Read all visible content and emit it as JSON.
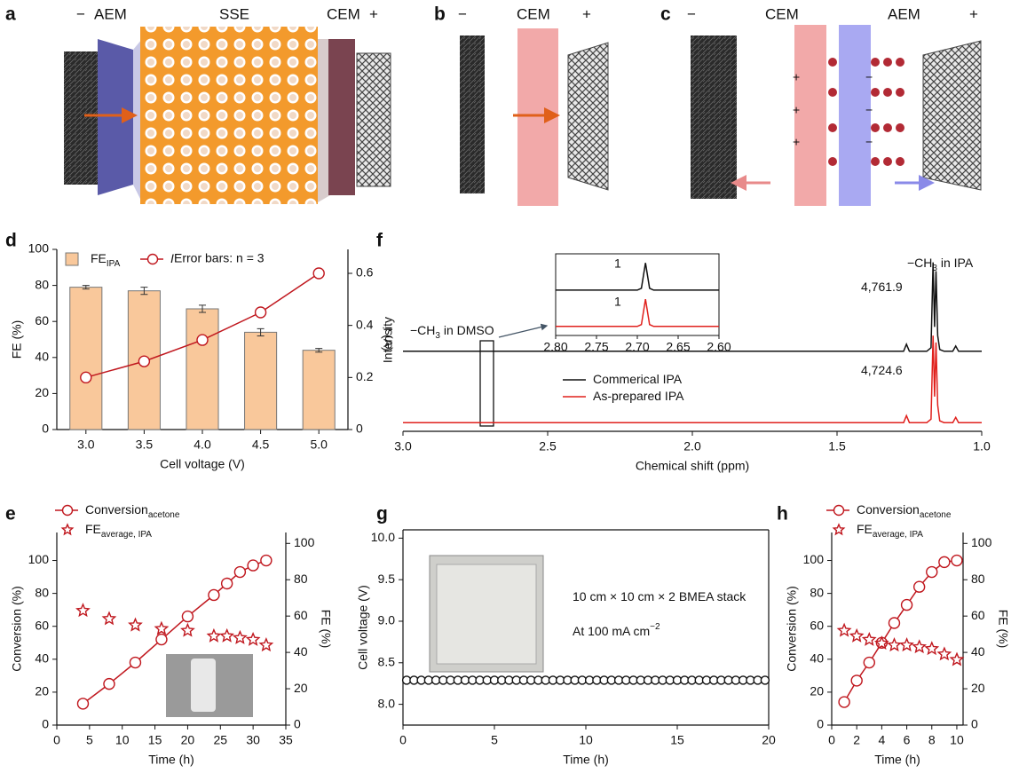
{
  "illustrations": {
    "a": {
      "letter": "a",
      "labels": [
        "−",
        "AEM",
        "SSE",
        "CEM",
        "+"
      ]
    },
    "b": {
      "letter": "b",
      "labels": [
        "−",
        "CEM",
        "+"
      ]
    },
    "c": {
      "letter": "c",
      "labels": [
        "−",
        "CEM",
        "AEM",
        "+"
      ],
      "charges": [
        "+",
        "+",
        "+",
        "−",
        "−",
        "−"
      ]
    }
  },
  "chart_data": [
    {
      "type": "bar",
      "panel": "d",
      "categories": [
        "3.0",
        "3.5",
        "4.0",
        "4.5",
        "5.0"
      ],
      "series": [
        {
          "name": "FE",
          "name_sub": "IPA",
          "color": "#f9c89b",
          "values": [
            79,
            77,
            67,
            54,
            44
          ],
          "errors": [
            1,
            2,
            2,
            2,
            1
          ]
        },
        {
          "name": "I",
          "axis": "y2",
          "color": "#c0171e",
          "marker": "circle",
          "values": [
            0.2,
            0.262,
            0.344,
            0.45,
            0.6
          ]
        }
      ],
      "legend_note": "Error bars: n = 3",
      "xlabel": "Cell voltage (V)",
      "ylabel": "FE (%)",
      "y2label": "I (A)",
      "ylim": [
        0,
        100
      ],
      "yticks": [
        0,
        20,
        40,
        60,
        80,
        100
      ],
      "y2lim": [
        0,
        0.692
      ],
      "y2ticks": [
        0,
        0.2,
        0.4,
        0.6
      ]
    },
    {
      "type": "line",
      "panel": "f",
      "x": [
        3.0,
        1.27,
        1.26,
        1.25,
        1.19,
        1.175,
        1.168,
        1.163,
        1.158,
        1.152,
        1.145,
        1.13,
        1.1,
        1.09,
        1.08,
        1.0
      ],
      "series": [
        {
          "name": "As-prepared IPA",
          "color": "#e0201c",
          "values": [
            0,
            0,
            0.4,
            0,
            0,
            0.2,
            5.0,
            1.5,
            4.6,
            1.0,
            0.1,
            0,
            0,
            0.3,
            0,
            0
          ]
        },
        {
          "name": "Commerical IPA",
          "color": "#111111",
          "values": [
            4.1,
            4.1,
            4.5,
            4.1,
            4.1,
            4.3,
            9.2,
            5.5,
            8.7,
            5.0,
            4.2,
            4.1,
            4.1,
            4.4,
            4.1,
            4.1
          ]
        }
      ],
      "annotations": [
        {
          "text": "−CH",
          "sub": "3",
          "tail": " in IPA"
        },
        {
          "text": "4,761.9"
        },
        {
          "text": "4,724.6"
        },
        {
          "text": "−CH",
          "sub": "3",
          "tail": " in DMSO"
        }
      ],
      "xlabel": "Chemical shift (ppm)",
      "ylabel": "Intensity",
      "xlim": [
        3.0,
        1.0
      ],
      "xticks": [
        {
          "value": 3.0,
          "label": "3.0"
        },
        2.5,
        {
          "value": 2.0,
          "label": "2.0"
        },
        1.5,
        {
          "value": 1.0,
          "label": "1.0"
        }
      ],
      "ylim": [
        -0.5,
        10
      ],
      "inset": {
        "x": [
          2.8,
          2.7,
          2.695,
          2.69,
          2.685,
          2.68,
          2.6
        ],
        "series": [
          {
            "color": "#111111",
            "values": [
              4,
              4,
              4.2,
              7,
              4.2,
              4,
              4
            ]
          },
          {
            "color": "#e0201c",
            "values": [
              0,
              0,
              0.2,
              3,
              0.2,
              0,
              0
            ]
          }
        ],
        "labels": [
          "1",
          "1"
        ],
        "xlim": [
          2.8,
          2.6
        ],
        "xticks": [
          {
            "value": 2.8,
            "label": "2.80"
          },
          2.75,
          {
            "value": 2.7,
            "label": "2.70"
          },
          2.65,
          {
            "value": 2.6,
            "label": "2.60"
          }
        ],
        "ylim": [
          -1,
          8
        ]
      }
    },
    {
      "type": "line",
      "panel": "e",
      "x": [
        4,
        8,
        12,
        16,
        20,
        24,
        26,
        28,
        30,
        32
      ],
      "series": [
        {
          "name": "Conversion",
          "name_sub": "acetone",
          "color": "#c0171e",
          "marker": "circle",
          "connected": true,
          "values": [
            13,
            25,
            38,
            52,
            66,
            79,
            86,
            93,
            97,
            100
          ]
        },
        {
          "name": "FE",
          "name_sub": "average, IPA",
          "color": "#c0171e",
          "marker": "star",
          "connected": false,
          "axis": "y2",
          "values": [
            63,
            58.5,
            55,
            53,
            52,
            49,
            49,
            48,
            47,
            44
          ]
        }
      ],
      "xlabel": "Time (h)",
      "ylabel": "Conversion (%)",
      "y2label": "FE (%)",
      "xlim": [
        0,
        35
      ],
      "xticks": [
        0,
        5,
        10,
        15,
        20,
        25,
        30,
        35
      ],
      "ylim": [
        0,
        117
      ],
      "yticks": [
        0,
        20,
        40,
        60,
        80,
        100
      ],
      "y2lim": [
        0,
        106
      ],
      "y2ticks": [
        0,
        20,
        40,
        60,
        80,
        100
      ]
    },
    {
      "type": "line",
      "panel": "g",
      "x": [
        0.2,
        0.6,
        1.0,
        1.4,
        1.8,
        2.2,
        2.6,
        3.0,
        3.4,
        3.8,
        4.2,
        4.6,
        5.0,
        5.4,
        5.8,
        6.2,
        6.6,
        7.0,
        7.4,
        7.8,
        8.2,
        8.6,
        9.0,
        9.4,
        9.8,
        10.2,
        10.6,
        11.0,
        11.4,
        11.8,
        12.2,
        12.6,
        13.0,
        13.4,
        13.8,
        14.2,
        14.6,
        15.0,
        15.4,
        15.8,
        16.2,
        16.6,
        17.0,
        17.4,
        17.8,
        18.2,
        18.6,
        19.0,
        19.4,
        19.8
      ],
      "series": [
        {
          "color": "#111111",
          "marker": "circle",
          "connected": false,
          "values": [
            8.29,
            8.29,
            8.29,
            8.29,
            8.29,
            8.29,
            8.29,
            8.29,
            8.29,
            8.29,
            8.29,
            8.29,
            8.29,
            8.29,
            8.29,
            8.29,
            8.29,
            8.29,
            8.29,
            8.29,
            8.29,
            8.29,
            8.29,
            8.29,
            8.29,
            8.29,
            8.29,
            8.29,
            8.29,
            8.29,
            8.29,
            8.29,
            8.29,
            8.29,
            8.29,
            8.29,
            8.29,
            8.29,
            8.29,
            8.29,
            8.29,
            8.29,
            8.29,
            8.29,
            8.29,
            8.29,
            8.29,
            8.29,
            8.29,
            8.29
          ]
        }
      ],
      "annotations": [
        {
          "text": "10 cm × 10 cm × 2 BMEA stack"
        },
        {
          "text": "At 100 mA cm",
          "sup": "−2"
        }
      ],
      "xlabel": "Time (h)",
      "ylabel": "Cell voltage (V)",
      "xlim": [
        0,
        20
      ],
      "xticks": [
        0,
        5,
        10,
        15,
        20
      ],
      "ylim": [
        7.75,
        10.1
      ],
      "yticks": [
        {
          "value": 8.0,
          "label": "8.0"
        },
        8.5,
        {
          "value": 9.0,
          "label": "9.0"
        },
        9.5,
        {
          "value": 10.0,
          "label": "10.0"
        }
      ]
    },
    {
      "type": "line",
      "panel": "h",
      "x": [
        1,
        2,
        3,
        4,
        5,
        6,
        7,
        8,
        9,
        10
      ],
      "series": [
        {
          "name": "Conversion",
          "name_sub": "acetone",
          "color": "#c0171e",
          "marker": "circle",
          "connected": true,
          "values": [
            14,
            27,
            38,
            50,
            62,
            73,
            84,
            93,
            99,
            100
          ]
        },
        {
          "name": "FE",
          "name_sub": "average, IPA",
          "color": "#c0171e",
          "marker": "star",
          "connected": false,
          "axis": "y2",
          "values": [
            52,
            49,
            47,
            45,
            44,
            44,
            43,
            42,
            39,
            36
          ]
        }
      ],
      "xlabel": "Time (h)",
      "ylabel": "Conversion (%)",
      "y2label": "FE (%)",
      "xlim": [
        0,
        10.5
      ],
      "xticks": [
        0,
        2,
        4,
        6,
        8,
        10
      ],
      "ylim": [
        0,
        117
      ],
      "yticks": [
        0,
        20,
        40,
        60,
        80,
        100
      ],
      "y2lim": [
        0,
        106
      ],
      "y2ticks": [
        0,
        20,
        40,
        60,
        80,
        100
      ]
    }
  ]
}
